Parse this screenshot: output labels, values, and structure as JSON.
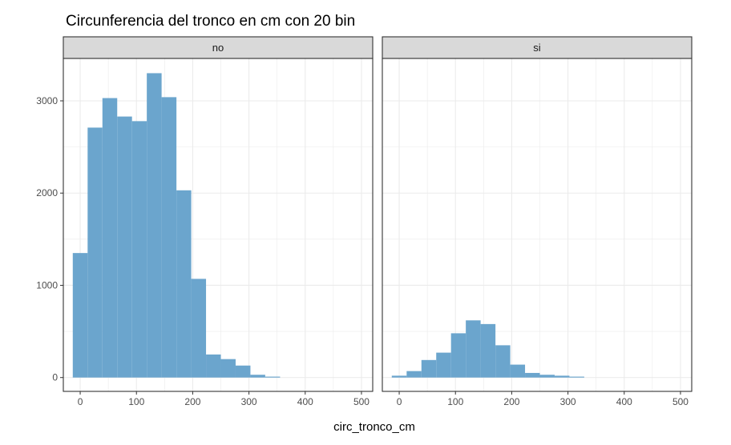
{
  "chart_data": {
    "type": "bar",
    "title": "Circunferencia del tronco en cm con 20 bin",
    "xlabel": "circ_tronco_cm",
    "ylabel": "",
    "xlim": [
      -30,
      520
    ],
    "ylim": [
      -150,
      3460
    ],
    "x_ticks": [
      0,
      100,
      200,
      300,
      400,
      500
    ],
    "y_ticks": [
      0,
      1000,
      2000,
      3000
    ],
    "grid": true,
    "bar_color": "#6BA5CD",
    "strip_fill": "#D9D9D9",
    "panel_border": "#333333",
    "grid_color": "#EBEBEB",
    "bins": [
      {
        "start": -13.2,
        "end": 13.2
      },
      {
        "start": 13.2,
        "end": 39.5
      },
      {
        "start": 39.5,
        "end": 65.8
      },
      {
        "start": 65.8,
        "end": 92.1
      },
      {
        "start": 92.1,
        "end": 118.4
      },
      {
        "start": 118.4,
        "end": 144.7
      },
      {
        "start": 144.7,
        "end": 171.1
      },
      {
        "start": 171.1,
        "end": 197.4
      },
      {
        "start": 197.4,
        "end": 223.7
      },
      {
        "start": 223.7,
        "end": 250.0
      },
      {
        "start": 250.0,
        "end": 276.3
      },
      {
        "start": 276.3,
        "end": 302.6
      },
      {
        "start": 302.6,
        "end": 328.9
      },
      {
        "start": 328.9,
        "end": 355.3
      },
      {
        "start": 355.3,
        "end": 381.6
      },
      {
        "start": 381.6,
        "end": 407.9
      },
      {
        "start": 407.9,
        "end": 434.2
      },
      {
        "start": 434.2,
        "end": 460.5
      },
      {
        "start": 460.5,
        "end": 486.8
      },
      {
        "start": 486.8,
        "end": 513.2
      }
    ],
    "panels": [
      {
        "name": "no",
        "values": [
          1350,
          2710,
          3030,
          2830,
          2780,
          3300,
          3040,
          2030,
          1070,
          250,
          200,
          130,
          30,
          10,
          0,
          0,
          0,
          0,
          0,
          0
        ]
      },
      {
        "name": "si",
        "values": [
          20,
          70,
          190,
          270,
          480,
          620,
          580,
          350,
          140,
          50,
          30,
          20,
          10,
          0,
          0,
          0,
          0,
          0,
          0,
          0
        ]
      }
    ]
  }
}
